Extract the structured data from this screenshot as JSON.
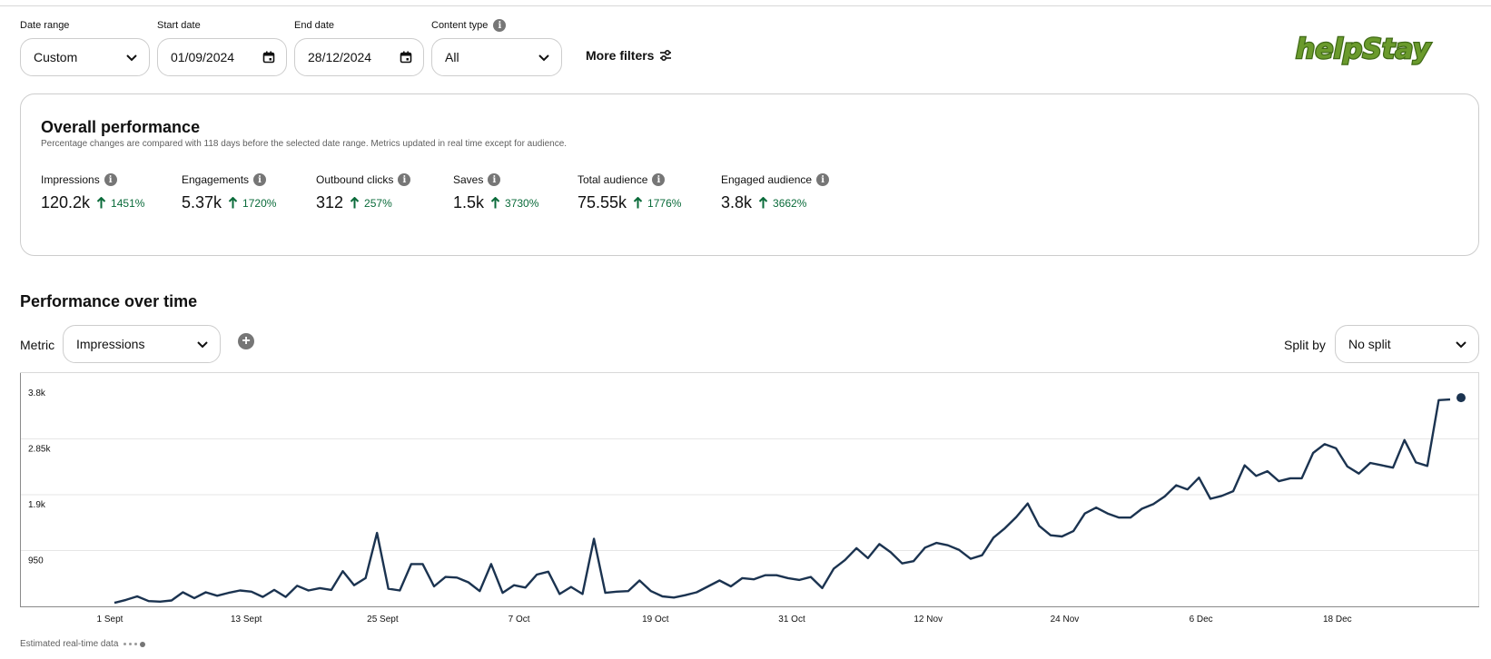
{
  "filters": {
    "date_range": {
      "label": "Date range",
      "value": "Custom"
    },
    "start_date": {
      "label": "Start date",
      "value": "01/09/2024"
    },
    "end_date": {
      "label": "End date",
      "value": "28/12/2024"
    },
    "content_type": {
      "label": "Content type",
      "value": "All"
    },
    "more_filters_label": "More filters"
  },
  "logo_text": "helpStay",
  "overall": {
    "title": "Overall performance",
    "subtitle": "Percentage changes are compared with 118 days before the selected date range. Metrics updated in real time except for audience.",
    "metrics": [
      {
        "label": "Impressions",
        "value": "120.2k",
        "change": "1451%"
      },
      {
        "label": "Engagements",
        "value": "5.37k",
        "change": "1720%"
      },
      {
        "label": "Outbound clicks",
        "value": "312",
        "change": "257%"
      },
      {
        "label": "Saves",
        "value": "1.5k",
        "change": "3730%"
      },
      {
        "label": "Total audience",
        "value": "75.55k",
        "change": "1776%"
      },
      {
        "label": "Engaged audience",
        "value": "3.8k",
        "change": "3662%"
      }
    ]
  },
  "performance": {
    "title": "Performance over time",
    "metric_label": "Metric",
    "metric_value": "Impressions",
    "split_label": "Split by",
    "split_value": "No split",
    "footer_note": "Estimated real-time data"
  },
  "colors": {
    "line": "#1b3350",
    "positive": "#0a6b3a",
    "logo_green": "#6a9a2c",
    "border": "#cdcdcd"
  },
  "icons": {
    "chevron": "chevron-down-icon",
    "calendar": "calendar-icon",
    "info": "info-icon",
    "filters": "sliders-icon",
    "add": "plus-circle-icon",
    "up": "arrow-up-icon"
  },
  "chart_data": {
    "type": "line",
    "title": "",
    "xlabel": "",
    "ylabel": "",
    "yticks": [
      "950",
      "1.9k",
      "2.85k",
      "3.8k"
    ],
    "ylim": [
      0,
      3800
    ],
    "xticks": [
      "1 Sept",
      "13 Sept",
      "25 Sept",
      "7 Oct",
      "19 Oct",
      "31 Oct",
      "12 Nov",
      "24 Nov",
      "6 Dec",
      "18 Dec"
    ],
    "x_start": "2024-09-01",
    "x_end": "2024-12-28",
    "grid": true,
    "series": [
      {
        "values": [
          60,
          110,
          170,
          90,
          80,
          100,
          240,
          140,
          240,
          180,
          230,
          270,
          250,
          160,
          280,
          160,
          350,
          270,
          310,
          280,
          600,
          360,
          480,
          1250,
          300,
          270,
          720,
          720,
          340,
          500,
          490,
          410,
          260,
          720,
          230,
          360,
          320,
          540,
          590,
          210,
          330,
          210,
          1150,
          230,
          250,
          260,
          440,
          260,
          170,
          150,
          190,
          240,
          340,
          440,
          340,
          480,
          460,
          530,
          530,
          480,
          450,
          500,
          310,
          640,
          790,
          990,
          820,
          1060,
          920,
          730,
          770,
          1000,
          1080,
          1040,
          960,
          810,
          870,
          1170,
          1330,
          1520,
          1750,
          1370,
          1210,
          1190,
          1280,
          1580,
          1680,
          1580,
          1510,
          1510,
          1660,
          1740,
          1870,
          2060,
          1990,
          2190,
          1830,
          1880,
          1960,
          2400,
          2220,
          2300,
          2130,
          2180,
          2180,
          2610,
          2760,
          2690,
          2380,
          2260,
          2440,
          2400,
          2360,
          2830,
          2450,
          2390,
          3510,
          3520
        ]
      }
    ]
  }
}
